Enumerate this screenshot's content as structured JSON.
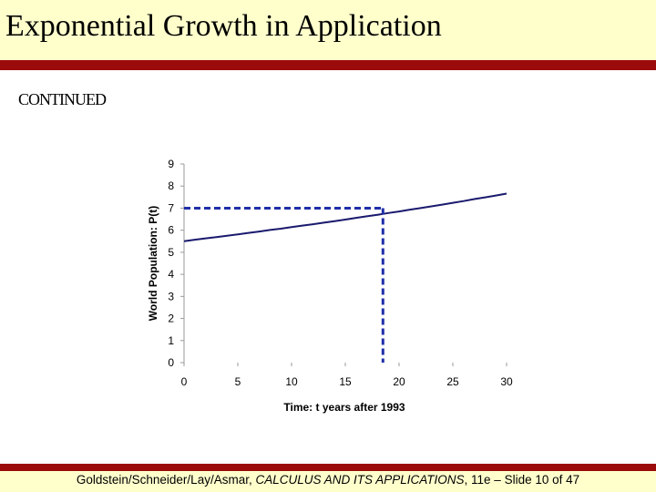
{
  "slide": {
    "title": "Exponential Growth in Application",
    "subtitle": "CONTINUED",
    "accent_color": "#9b0b0b",
    "band_color": "#ffffcc"
  },
  "footer": {
    "authors": "Goldstein/Schneider/Lay/Asmar, ",
    "book": "CALCULUS AND ITS APPLICATIONS",
    "edition_slide": ", 11e – Slide 10 of 47"
  },
  "chart_data": {
    "type": "line",
    "xlabel": "Time: t years after 1993",
    "ylabel": "World Population: P(t)",
    "xlim": [
      0,
      30
    ],
    "ylim": [
      0,
      9
    ],
    "x_ticks": [
      0,
      5,
      10,
      15,
      20,
      25,
      30
    ],
    "y_ticks": [
      0,
      1,
      2,
      3,
      4,
      5,
      6,
      7,
      8,
      9
    ],
    "grid": false,
    "line_color": "#1a1a6e",
    "series": [
      {
        "name": "P(t)",
        "x": [
          0,
          1,
          2,
          3,
          4,
          5,
          6,
          7,
          8,
          9,
          10,
          11,
          12,
          13,
          14,
          15,
          16,
          17,
          18,
          19,
          20,
          21,
          22,
          23,
          24,
          25,
          26,
          27,
          28,
          29,
          30
        ],
        "values": [
          5.5,
          5.57,
          5.63,
          5.69,
          5.75,
          5.81,
          5.88,
          5.94,
          6.01,
          6.07,
          6.14,
          6.21,
          6.27,
          6.34,
          6.41,
          6.48,
          6.56,
          6.63,
          6.7,
          6.78,
          6.85,
          6.93,
          7.0,
          7.08,
          7.16,
          7.24,
          7.32,
          7.41,
          7.49,
          7.57,
          7.66
        ]
      }
    ],
    "annotation": {
      "color": "#1f2fa8",
      "x": 18.5,
      "y": 7.0
    }
  }
}
